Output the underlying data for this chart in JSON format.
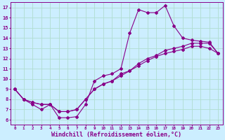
{
  "background_color": "#cceeff",
  "grid_color": "#b0ddd0",
  "line_color": "#880088",
  "xlabel": "Windchill (Refroidissement éolien,°C)",
  "xlabel_fontsize": 6.0,
  "xtick_fontsize": 4.2,
  "ytick_fontsize": 5.0,
  "ylim": [
    5.5,
    17.5
  ],
  "xlim": [
    -0.5,
    23.5
  ],
  "curve1_x": [
    0,
    1,
    2,
    3,
    4,
    5,
    6,
    7,
    8,
    9,
    10,
    11,
    12,
    13,
    14,
    15,
    16,
    17,
    18,
    19,
    20,
    21,
    22,
    23
  ],
  "curve1_y": [
    9.0,
    8.0,
    7.5,
    7.0,
    7.5,
    6.2,
    6.2,
    6.3,
    7.5,
    9.8,
    10.3,
    10.5,
    11.0,
    14.5,
    16.8,
    16.5,
    16.5,
    17.2,
    15.2,
    14.0,
    13.8,
    13.7,
    13.6,
    12.5
  ],
  "curve2_x": [
    0,
    1,
    2,
    3,
    4,
    5,
    6,
    7,
    8,
    9,
    10,
    11,
    12,
    13,
    14,
    15,
    16,
    17,
    18,
    19,
    20,
    21,
    22,
    23
  ],
  "curve2_y": [
    9.0,
    8.0,
    7.7,
    7.5,
    7.5,
    6.8,
    6.8,
    7.0,
    8.0,
    9.0,
    9.5,
    9.8,
    10.5,
    10.8,
    11.5,
    12.0,
    12.3,
    12.8,
    13.0,
    13.2,
    13.5,
    13.5,
    13.5,
    12.5
  ],
  "curve3_x": [
    0,
    1,
    2,
    3,
    4,
    5,
    6,
    7,
    8,
    9,
    10,
    11,
    12,
    13,
    14,
    15,
    16,
    17,
    18,
    19,
    20,
    21,
    22,
    23
  ],
  "curve3_y": [
    9.0,
    8.0,
    7.7,
    7.5,
    7.5,
    6.8,
    6.8,
    7.0,
    8.0,
    9.0,
    9.5,
    9.8,
    10.3,
    10.8,
    11.3,
    11.8,
    12.2,
    12.5,
    12.7,
    12.9,
    13.2,
    13.2,
    13.0,
    12.5
  ]
}
